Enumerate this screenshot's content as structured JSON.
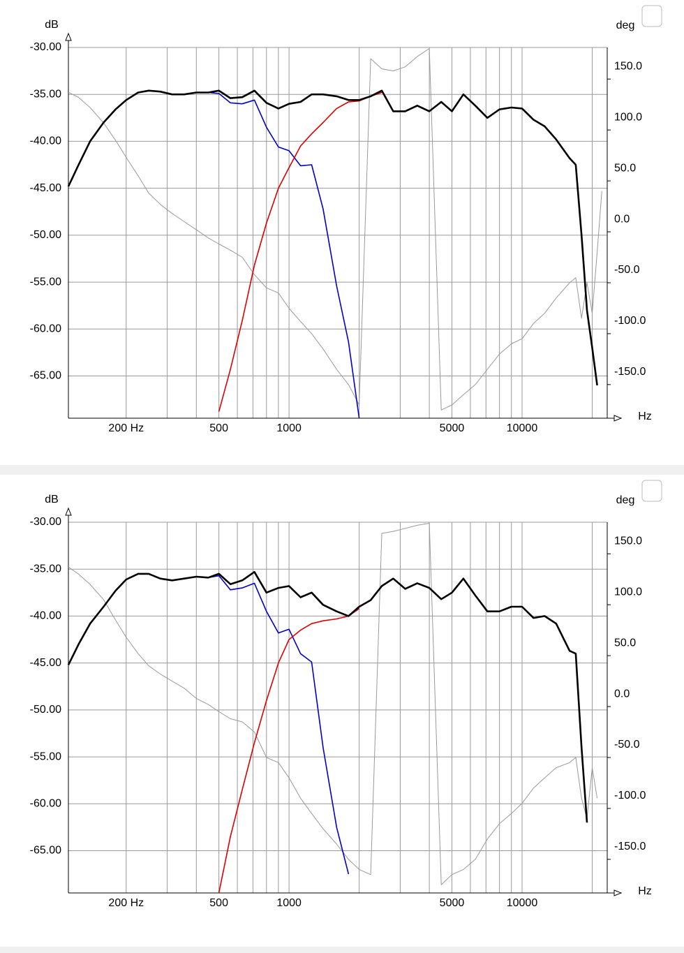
{
  "chart_data": [
    {
      "type": "line",
      "xscale": "log",
      "grid": true,
      "y_label": "dB",
      "y2_label": "deg",
      "x_label": "Hz",
      "xlim": [
        113,
        23200
      ],
      "ylim": [
        -69.5,
        -30
      ],
      "y2lim": [
        -183,
        181
      ],
      "xticks": [
        {
          "value": 200,
          "label": "200 Hz"
        },
        500,
        1000,
        5000,
        10000
      ],
      "xminor": [
        300,
        400,
        600,
        700,
        800,
        900,
        2000,
        3000,
        4000,
        6000,
        7000,
        8000,
        9000,
        20000
      ],
      "yticks": [
        {
          "value": -30,
          "label": "-30.00"
        },
        {
          "value": -35,
          "label": "-35.00"
        },
        {
          "value": -40,
          "label": "-40.00"
        },
        {
          "value": -45,
          "label": "-45.00"
        },
        {
          "value": -50,
          "label": "-50.00"
        },
        {
          "value": -55,
          "label": "-55.00"
        },
        {
          "value": -60,
          "label": "-60.00"
        },
        {
          "value": -65,
          "label": "-65.00"
        }
      ],
      "y2ticks": [
        {
          "value": 150,
          "label": "150.0"
        },
        {
          "value": 100,
          "label": "100.0"
        },
        {
          "value": 50,
          "label": "50.0"
        },
        {
          "value": 0,
          "label": "0.0"
        },
        {
          "value": -50,
          "label": "-50.0"
        },
        {
          "value": -100,
          "label": "-100.0"
        },
        {
          "value": -150,
          "label": "-150.0"
        }
      ],
      "x": [
        113,
        125,
        140,
        160,
        180,
        200,
        225,
        250,
        280,
        315,
        355,
        400,
        450,
        500,
        560,
        630,
        710,
        800,
        900,
        1000,
        1120,
        1250,
        1400,
        1600,
        1800,
        2000,
        2240,
        2500,
        2800,
        3150,
        3550,
        4000,
        4500,
        5000,
        5600,
        6300,
        7100,
        8000,
        9000,
        10000,
        11200,
        12500,
        14000,
        16000,
        17000,
        18000,
        19000,
        20000,
        21000,
        22000
      ],
      "series": [
        {
          "color": "#999999",
          "axis": "y2",
          "width": 1,
          "values": [
            137,
            132,
            122,
            107,
            90,
            73,
            55,
            38,
            27,
            18,
            10,
            2,
            -6,
            -12,
            -18,
            -25,
            -42,
            -55,
            -60,
            -75,
            -88,
            -100,
            -115,
            -135,
            -150,
            -170,
            170,
            160,
            158,
            162,
            172,
            180,
            -175,
            -170,
            -160,
            -150,
            -135,
            -120,
            -110,
            -105,
            -90,
            -80,
            -65,
            -50,
            -45,
            -85,
            -50,
            -80,
            -20,
            40
          ]
        },
        {
          "color": "#0000cc",
          "width": 1.6,
          "values": [
            null,
            null,
            null,
            null,
            null,
            null,
            null,
            null,
            null,
            null,
            null,
            null,
            -34.8,
            -34.9,
            -35.9,
            -36.0,
            -35.6,
            -38.5,
            -40.6,
            -41.0,
            -42.6,
            -42.5,
            -47.2,
            -55.4,
            -61.4,
            -69.5,
            null,
            null,
            null,
            null,
            null,
            null,
            null,
            null,
            null,
            null,
            null,
            null,
            null,
            null,
            null,
            null,
            null,
            null,
            null,
            null,
            null,
            null,
            null,
            null
          ]
        },
        {
          "color": "#dd0000",
          "width": 1.6,
          "values": [
            null,
            null,
            null,
            null,
            null,
            null,
            null,
            null,
            null,
            null,
            null,
            null,
            null,
            -68.8,
            -64.3,
            -59.1,
            -53.2,
            -48.7,
            -45,
            -42.8,
            -40.5,
            -39.2,
            -38,
            -36.5,
            -35.8,
            -35.7,
            -35.2,
            -34.8,
            null,
            null,
            null,
            null,
            null,
            null,
            null,
            null,
            null,
            null,
            null,
            null,
            null,
            null,
            null,
            null,
            null,
            null,
            null,
            null,
            null,
            null
          ]
        },
        {
          "color": "#000000",
          "width": 2.6,
          "values": [
            -44.8,
            -42.5,
            -40,
            -38,
            -36.6,
            -35.6,
            -34.8,
            -34.6,
            -34.7,
            -35.0,
            -35.0,
            -34.8,
            -34.8,
            -34.6,
            -35.4,
            -35.3,
            -34.6,
            -35.9,
            -36.5,
            -36.0,
            -35.8,
            -35.0,
            -35.0,
            -35.2,
            -35.6,
            -35.6,
            -35.2,
            -34.6,
            -36.8,
            -36.8,
            -36.2,
            -36.8,
            -35.8,
            -36.8,
            -35.0,
            -36.2,
            -37.5,
            -36.6,
            -36.4,
            -36.5,
            -37.7,
            -38.4,
            -39.8,
            -41.8,
            -42.5,
            -50,
            -58,
            -62,
            -66,
            null
          ]
        }
      ]
    },
    {
      "type": "line",
      "xscale": "log",
      "grid": true,
      "y_label": "dB",
      "y2_label": "deg",
      "x_label": "Hz",
      "xlim": [
        113,
        23200
      ],
      "ylim": [
        -69.5,
        -30
      ],
      "y2lim": [
        -183,
        181
      ],
      "xticks": [
        {
          "value": 200,
          "label": "200 Hz"
        },
        500,
        1000,
        5000,
        10000
      ],
      "xminor": [
        300,
        400,
        600,
        700,
        800,
        900,
        2000,
        3000,
        4000,
        6000,
        7000,
        8000,
        9000,
        20000
      ],
      "yticks": [
        {
          "value": -30,
          "label": "-30.00"
        },
        {
          "value": -35,
          "label": "-35.00"
        },
        {
          "value": -40,
          "label": "-40.00"
        },
        {
          "value": -45,
          "label": "-45.00"
        },
        {
          "value": -50,
          "label": "-50.00"
        },
        {
          "value": -55,
          "label": "-55.00"
        },
        {
          "value": -60,
          "label": "-60.00"
        },
        {
          "value": -65,
          "label": "-65.00"
        }
      ],
      "y2ticks": [
        {
          "value": 150,
          "label": "150.0"
        },
        {
          "value": 100,
          "label": "100.0"
        },
        {
          "value": 50,
          "label": "50.0"
        },
        {
          "value": 0,
          "label": "0.0"
        },
        {
          "value": -50,
          "label": "-50.0"
        },
        {
          "value": -100,
          "label": "-100.0"
        },
        {
          "value": -150,
          "label": "-150.0"
        }
      ],
      "x": [
        113,
        125,
        140,
        160,
        180,
        200,
        225,
        250,
        280,
        315,
        355,
        400,
        450,
        500,
        560,
        630,
        710,
        800,
        900,
        1000,
        1120,
        1250,
        1400,
        1600,
        1800,
        2000,
        2240,
        2500,
        2800,
        3150,
        3550,
        4000,
        4500,
        5000,
        5600,
        6300,
        7100,
        8000,
        9000,
        10000,
        11200,
        12500,
        14000,
        16000,
        17000,
        18000,
        19000,
        20000,
        21000,
        22000
      ],
      "series": [
        {
          "color": "#999999",
          "axis": "y2",
          "width": 1,
          "values": [
            137,
            130,
            120,
            105,
            85,
            68,
            52,
            40,
            32,
            25,
            18,
            8,
            2,
            -5,
            -12,
            -15,
            -25,
            -50,
            -55,
            -70,
            -90,
            -105,
            -120,
            -135,
            -150,
            -160,
            -165,
            170,
            172,
            175,
            178,
            180,
            -175,
            -165,
            -160,
            -150,
            -130,
            -115,
            -105,
            -95,
            -80,
            -70,
            -60,
            -55,
            -50,
            -90,
            -110,
            -60,
            -90,
            null
          ]
        },
        {
          "color": "#0000cc",
          "width": 1.6,
          "values": [
            null,
            null,
            null,
            null,
            null,
            null,
            null,
            null,
            null,
            null,
            null,
            null,
            -35.9,
            -35.7,
            -37.2,
            -37.0,
            -36.5,
            -39.5,
            -41.8,
            -41.4,
            -44.0,
            -44.9,
            -54,
            -62.5,
            -67.5,
            null,
            null,
            null,
            null,
            null,
            null,
            null,
            null,
            null,
            null,
            null,
            null,
            null,
            null,
            null,
            null,
            null,
            null,
            null,
            null,
            null,
            null,
            null,
            null,
            null
          ]
        },
        {
          "color": "#dd0000",
          "width": 1.6,
          "values": [
            null,
            null,
            null,
            null,
            null,
            null,
            null,
            null,
            null,
            null,
            null,
            null,
            null,
            -69.5,
            -63.5,
            -58.5,
            -53.5,
            -49,
            -45,
            -42.5,
            -41.5,
            -40.8,
            -40.5,
            -40.3,
            -40.0,
            -39.2,
            null,
            null,
            null,
            null,
            null,
            null,
            null,
            null,
            null,
            null,
            null,
            null,
            null,
            null,
            null,
            null,
            null,
            null,
            null,
            null,
            null,
            null,
            null,
            null
          ]
        },
        {
          "color": "#000000",
          "width": 2.6,
          "values": [
            -45.2,
            -43,
            -40.8,
            -39,
            -37.3,
            -36.1,
            -35.5,
            -35.5,
            -36.0,
            -36.2,
            -36.0,
            -35.8,
            -35.9,
            -35.5,
            -36.6,
            -36.2,
            -35.3,
            -37.5,
            -37.0,
            -36.8,
            -38.0,
            -37.5,
            -38.8,
            -39.5,
            -40.0,
            -39.0,
            -38.3,
            -36.8,
            -36.0,
            -37.1,
            -36.5,
            -37.0,
            -38.2,
            -37.5,
            -36.0,
            -37.8,
            -39.5,
            -39.5,
            -39.0,
            -39.0,
            -40.2,
            -40.0,
            -40.8,
            -43.7,
            -44.0,
            -54,
            -62,
            null,
            null,
            null
          ]
        }
      ]
    }
  ]
}
